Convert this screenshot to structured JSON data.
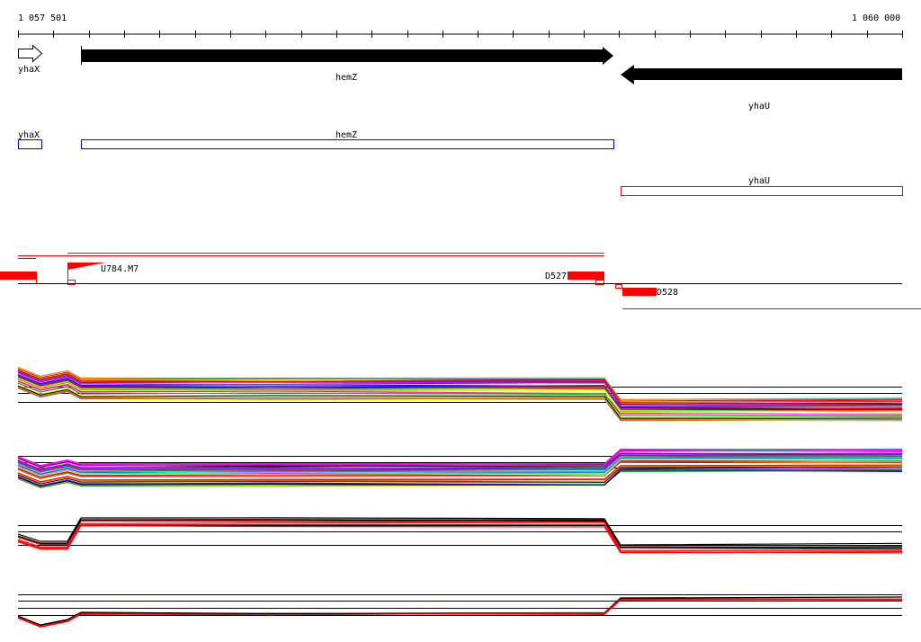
{
  "ruler": {
    "start_label": "1 057 501",
    "end_label": "1 060 000"
  },
  "genes": [
    {
      "name": "yhaX",
      "strand": "+"
    },
    {
      "name": "hemZ",
      "strand": "+"
    },
    {
      "name": "yhaU",
      "strand": "-"
    }
  ],
  "annotations": [
    {
      "name": "yhaX",
      "color": "#0000ff"
    },
    {
      "name": "hemZ",
      "color": "#0000ff"
    },
    {
      "name": "yhaU",
      "color": "#ff0000"
    }
  ],
  "transcripts": {
    "u_label": "U784.M7",
    "d1_label": "D527",
    "d2_label": "D528",
    "color": "#ff0000"
  },
  "expression_colors": [
    "#ff0000",
    "#00c000",
    "#0000ff",
    "#ff00ff",
    "#00ffff",
    "#ffff00",
    "#ff8000",
    "#808080",
    "#000000",
    "#8000ff",
    "#00ff80",
    "#804000"
  ]
}
